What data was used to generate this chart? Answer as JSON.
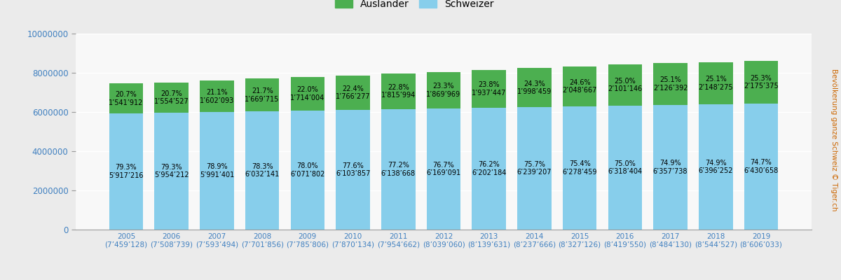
{
  "years_line1": [
    "2005",
    "2006",
    "2007",
    "2008",
    "2009",
    "2010",
    "2011",
    "2012",
    "2013",
    "2014",
    "2015",
    "2016",
    "2017",
    "2018",
    "2019"
  ],
  "years_line2": [
    "(7’459’128)",
    "(7’508’739)",
    "(7’593’494)",
    "(7’701’856)",
    "(7’785’806)",
    "(7’870’134)",
    "(7’954’662)",
    "(8’039’060)",
    "(8’139’631)",
    "(8’237’666)",
    "(8’327’126)",
    "(8’419’550)",
    "(8’484’130)",
    "(8’544’527)",
    "(8’606’033)"
  ],
  "schweizer_values": [
    5917216,
    5954212,
    5991401,
    6032141,
    6071802,
    6103857,
    6138668,
    6169091,
    6202184,
    6239207,
    6278459,
    6318404,
    6357738,
    6396252,
    6430658
  ],
  "auslaender_values": [
    1541912,
    1554527,
    1602093,
    1669715,
    1714004,
    1766277,
    1815994,
    1869969,
    1937447,
    1998459,
    2048667,
    2101146,
    2126392,
    2148275,
    2175375
  ],
  "schweizer_pct": [
    "79.3%",
    "79.3%",
    "78.9%",
    "78.3%",
    "78.0%",
    "77.6%",
    "77.2%",
    "76.7%",
    "76.2%",
    "75.7%",
    "75.4%",
    "75.0%",
    "74.9%",
    "74.9%",
    "74.7%"
  ],
  "auslaender_pct": [
    "20.7%",
    "20.7%",
    "21.1%",
    "21.7%",
    "22.0%",
    "22.4%",
    "22.8%",
    "23.3%",
    "23.8%",
    "24.3%",
    "24.6%",
    "25.0%",
    "25.1%",
    "25.1%",
    "25.3%"
  ],
  "schweizer_formatted": [
    "5’917’216",
    "5’954’212",
    "5’991’401",
    "6’032’141",
    "6’071’802",
    "6’103’857",
    "6’138’668",
    "6’169’091",
    "6’202’184",
    "6’239’207",
    "6’278’459",
    "6’318’404",
    "6’357’738",
    "6’396’252",
    "6’430’658"
  ],
  "auslaender_formatted": [
    "1’541’912",
    "1’554’527",
    "1’602’093",
    "1’669’715",
    "1’714’004",
    "1’766’277",
    "1’815’994",
    "1’869’969",
    "1’937’447",
    "1’998’459",
    "2’048’667",
    "2’101’146",
    "2’126’392",
    "2’148’275",
    "2’175’375"
  ],
  "schweizer_color": "#87CEEB",
  "auslaender_color": "#4CAF50",
  "outer_bg": "#EBEBEB",
  "inner_bg": "#F8F8F8",
  "ylabel": "Bevölkerung ganze Schweiz © Tiger.ch",
  "ylabel_color": "#CC6600",
  "ytick_color": "#4080C0",
  "xtick_color": "#4080C0",
  "ylim": [
    0,
    10000000
  ],
  "yticks": [
    0,
    2000000,
    4000000,
    6000000,
    8000000,
    10000000
  ],
  "ytick_labels": [
    "0",
    "2000000",
    "4000000",
    "6000000",
    "8000000",
    "10000000"
  ],
  "bar_width": 0.75,
  "legend_auslaender": "Ausländer",
  "legend_schweizer": "Schweizer",
  "annotation_fontsize": 7.0,
  "xtick_fontsize": 7.5,
  "ytick_fontsize": 8.5
}
